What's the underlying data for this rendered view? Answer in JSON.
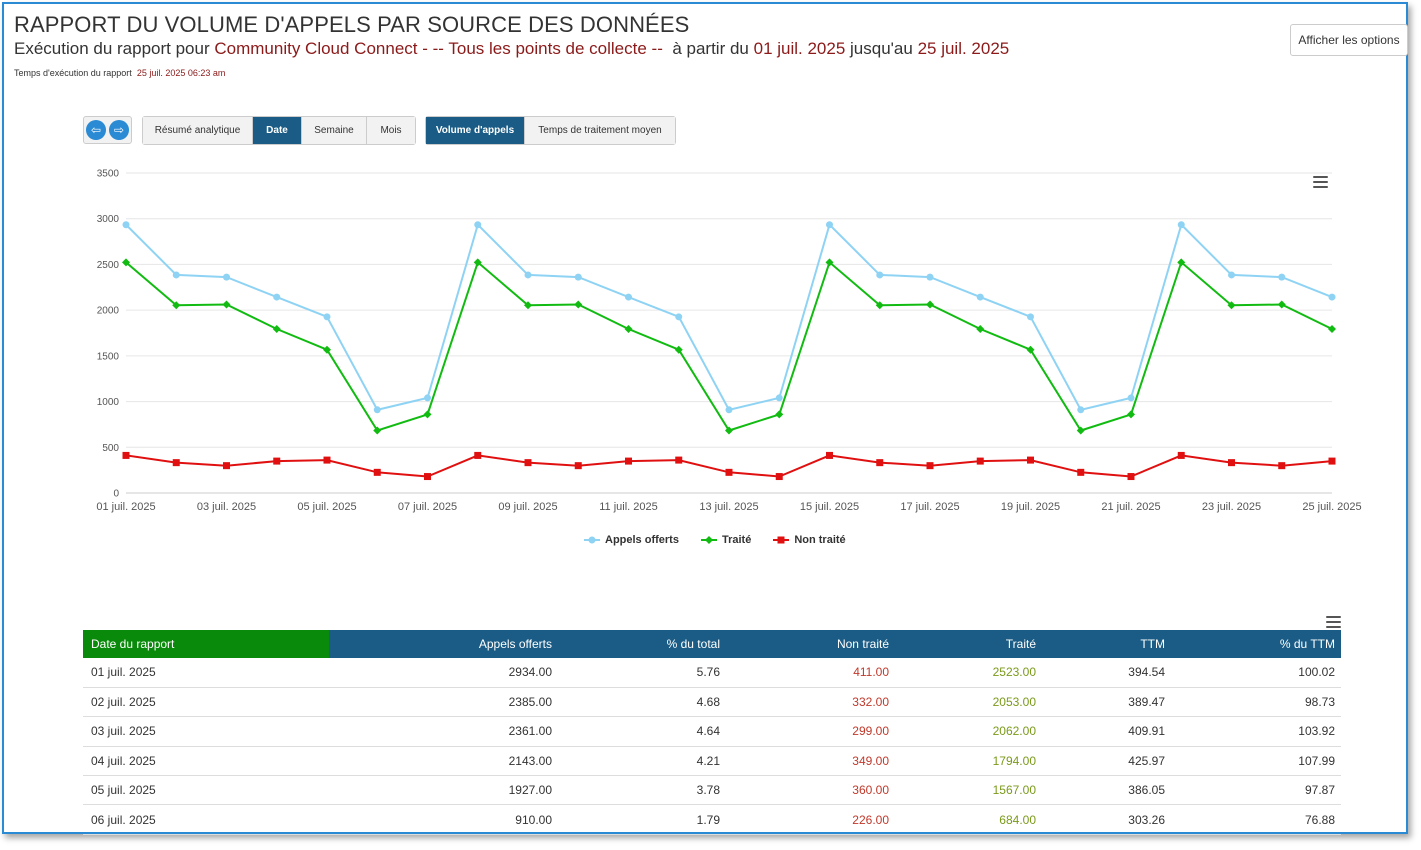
{
  "header": {
    "title": "RAPPORT DU VOLUME D'APPELS PAR SOURCE DES DONNÉES",
    "sub_prefix": "Exécution du rapport pour",
    "source": "Community Cloud Connect",
    "collect_points": " - -- Tous les points de collecte --",
    "from_label": "à partir du",
    "start_date": "01 juil. 2025",
    "to_label": "jusqu'au",
    "end_date": "25 juil. 2025",
    "exec_label": "Temps d'exécution du rapport",
    "exec_time": "25 juil. 2025 06:23 am"
  },
  "options_button": "Afficher les options",
  "nav": {
    "prev_icon": "arrow-left-icon",
    "next_icon": "arrow-right-icon"
  },
  "period_tabs": [
    {
      "label": "Résumé analytique",
      "active": false
    },
    {
      "label": "Date",
      "active": true
    },
    {
      "label": "Semaine",
      "active": false
    },
    {
      "label": "Mois",
      "active": false
    }
  ],
  "metric_tabs": [
    {
      "label": "Volume d'appels",
      "active": true
    },
    {
      "label": "Temps de traitement moyen",
      "active": false
    }
  ],
  "chart_data": {
    "type": "line",
    "x": [
      "01 juil. 2025",
      "02 juil. 2025",
      "03 juil. 2025",
      "04 juil. 2025",
      "05 juil. 2025",
      "06 juil. 2025",
      "07 juil. 2025",
      "08 juil. 2025",
      "09 juil. 2025",
      "10 juil. 2025",
      "11 juil. 2025",
      "12 juil. 2025",
      "13 juil. 2025",
      "14 juil. 2025",
      "15 juil. 2025",
      "16 juil. 2025",
      "17 juil. 2025",
      "18 juil. 2025",
      "19 juil. 2025",
      "20 juil. 2025",
      "21 juil. 2025",
      "22 juil. 2025",
      "23 juil. 2025",
      "24 juil. 2025",
      "25 juil. 2025"
    ],
    "x_tick_labels": [
      "01 juil. 2025",
      "03 juil. 2025",
      "05 juil. 2025",
      "07 juil. 2025",
      "09 juil. 2025",
      "11 juil. 2025",
      "13 juil. 2025",
      "15 juil. 2025",
      "17 juil. 2025",
      "19 juil. 2025",
      "21 juil. 2025",
      "23 juil. 2025",
      "25 juil. 2025"
    ],
    "y_ticks": [
      0,
      500,
      1000,
      1500,
      2000,
      2500,
      3000,
      3500
    ],
    "ylim": [
      0,
      3500
    ],
    "grid": true,
    "legend_position": "bottom",
    "series": [
      {
        "name": "Appels offerts",
        "color": "#8fd3f4",
        "marker": "circle",
        "values": [
          2934,
          2385,
          2361,
          2143,
          1927,
          910,
          1040,
          2934,
          2385,
          2361,
          2143,
          1927,
          910,
          1040,
          2934,
          2385,
          2361,
          2143,
          1927,
          910,
          1040,
          2934,
          2385,
          2361,
          2143
        ]
      },
      {
        "name": "Traité",
        "color": "#11bb11",
        "marker": "diamond",
        "values": [
          2523,
          2053,
          2062,
          1794,
          1567,
          684,
          860,
          2523,
          2053,
          2062,
          1794,
          1567,
          684,
          860,
          2523,
          2053,
          2062,
          1794,
          1567,
          684,
          860,
          2523,
          2053,
          2062,
          1794
        ]
      },
      {
        "name": "Non traité",
        "color": "#e01010",
        "marker": "square",
        "values": [
          411,
          332,
          299,
          349,
          360,
          226,
          180,
          411,
          332,
          299,
          349,
          360,
          226,
          180,
          411,
          332,
          299,
          349,
          360,
          226,
          180,
          411,
          332,
          299,
          349
        ]
      }
    ]
  },
  "table": {
    "headers": [
      "Date du rapport",
      "Appels offerts",
      "% du total",
      "Non traité",
      "Traité",
      "TTM",
      "% du TTM"
    ],
    "rows": [
      [
        "01 juil. 2025",
        "2934.00",
        "5.76",
        "411.00",
        "2523.00",
        "394.54",
        "100.02"
      ],
      [
        "02 juil. 2025",
        "2385.00",
        "4.68",
        "332.00",
        "2053.00",
        "389.47",
        "98.73"
      ],
      [
        "03 juil. 2025",
        "2361.00",
        "4.64",
        "299.00",
        "2062.00",
        "409.91",
        "103.92"
      ],
      [
        "04 juil. 2025",
        "2143.00",
        "4.21",
        "349.00",
        "1794.00",
        "425.97",
        "107.99"
      ],
      [
        "05 juil. 2025",
        "1927.00",
        "3.78",
        "360.00",
        "1567.00",
        "386.05",
        "97.87"
      ],
      [
        "06 juil. 2025",
        "910.00",
        "1.79",
        "226.00",
        "684.00",
        "303.26",
        "76.88"
      ]
    ]
  }
}
